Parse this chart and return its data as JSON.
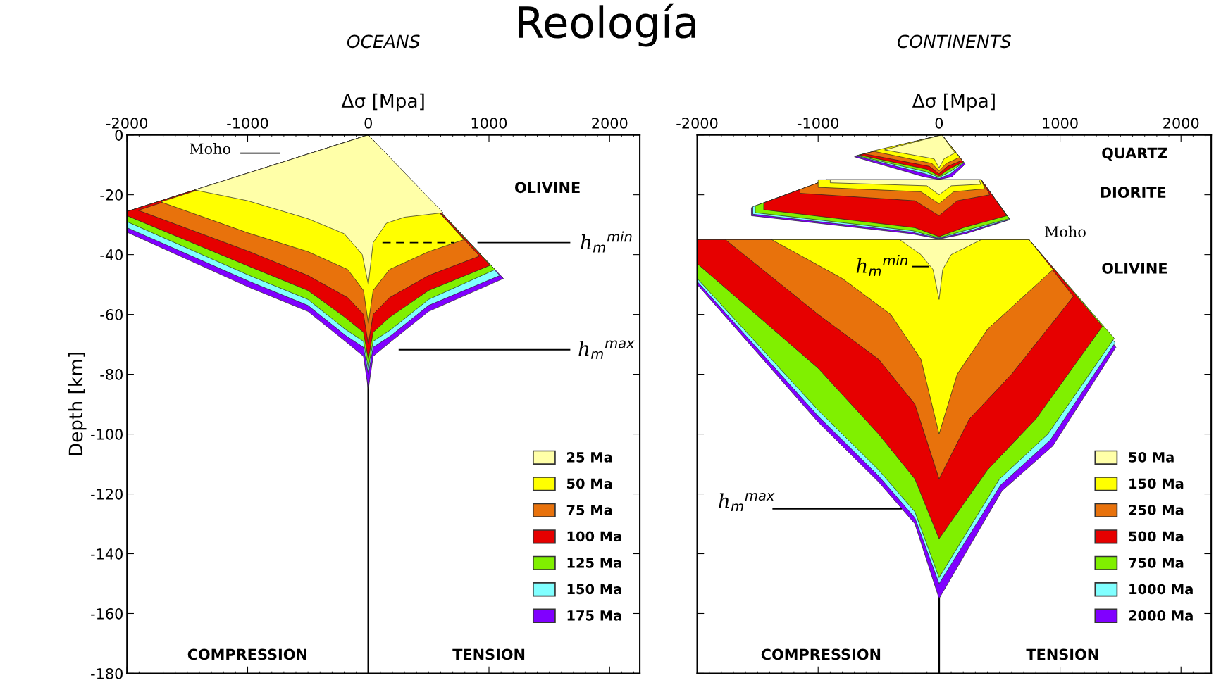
{
  "chart_data": [
    {
      "type": "area",
      "title": "Reología",
      "subtitle": "OCEANS",
      "xlabel": "Δσ [Mpa]",
      "ylabel": "Depth [km]",
      "xlim": [
        -2000,
        2250
      ],
      "xticks": [
        -2000,
        -1000,
        0,
        1000,
        2000
      ],
      "ylim": [
        -180,
        0
      ],
      "yticks": [
        -180,
        -160,
        -140,
        -120,
        -100,
        -80,
        -60,
        -40,
        -20,
        0
      ],
      "legend": "bottom right",
      "grid": false,
      "ref_lines": [
        {
          "axis": "x",
          "value": 0,
          "color": "#000000"
        }
      ],
      "series": [
        {
          "name": "25 Ma",
          "color": "#ffffa8",
          "x": [
            0,
            620,
            300,
            150,
            40,
            0,
            -50,
            -200,
            -500,
            -1000,
            -1440
          ],
          "values": [
            0,
            -26,
            -27.5,
            -29.5,
            -36,
            -50,
            -40,
            -33,
            -28,
            -22,
            -18.4
          ]
        },
        {
          "name": "50 Ma",
          "color": "#ffff00",
          "x": [
            0,
            793,
            500,
            175,
            40,
            0,
            -40,
            -170,
            -500,
            -1000,
            -1720
          ],
          "values": [
            0,
            -35,
            -39,
            -45,
            -52,
            -63,
            -52,
            -45,
            -39,
            -32.7,
            -22.4
          ]
        },
        {
          "name": "75 Ma",
          "color": "#e8720c",
          "x": [
            0,
            921,
            500,
            175,
            40,
            0,
            -40,
            -170,
            -500,
            -985,
            -1907
          ],
          "values": [
            0,
            -40.5,
            -47,
            -54.4,
            -60,
            -70,
            -60,
            -54.4,
            -47,
            -39,
            -25.2
          ]
        },
        {
          "name": "100 Ma",
          "color": "#e60000",
          "x": [
            0,
            1010,
            500,
            175,
            40,
            0,
            -40,
            -192,
            -500,
            -985,
            -2000,
            -2000
          ],
          "values": [
            0,
            -43.6,
            -52,
            -61,
            -66,
            -75,
            -66,
            -61,
            -52,
            -44,
            -27,
            -25.6
          ]
        },
        {
          "name": "125 Ma",
          "color": "#80f000",
          "x": [
            0,
            1050,
            500,
            190,
            40,
            0,
            -40,
            -190,
            -500,
            -985,
            -2000,
            -2000
          ],
          "values": [
            0,
            -45,
            -55,
            -65,
            -69,
            -78,
            -69,
            -65,
            -55,
            -47,
            -29,
            -25.6
          ]
        },
        {
          "name": "150 Ma",
          "color": "#80ffff",
          "x": [
            0,
            1090,
            500,
            190,
            40,
            0,
            -40,
            -190,
            -500,
            -985,
            -2000,
            -2000
          ],
          "values": [
            0,
            -47,
            -57,
            -67,
            -71,
            -80,
            -71,
            -67,
            -57,
            -49,
            -31,
            -25.6
          ]
        },
        {
          "name": "175 Ma",
          "color": "#8000ff",
          "x": [
            0,
            1120,
            500,
            190,
            40,
            0,
            -40,
            -190,
            -500,
            -985,
            -2000,
            -2000
          ],
          "values": [
            0,
            -48,
            -59,
            -69,
            -74,
            -85,
            -74,
            -69,
            -59,
            -51,
            -32.5,
            -25.6
          ]
        },
        {
          "type": "line",
          "color": "#000000",
          "line_style": "dashed",
          "x": [
            117,
            711
          ],
          "values": [
            -36,
            -36
          ]
        },
        {
          "type": "line",
          "color": "#000000",
          "line_style": "solid",
          "x": [
            910,
            1668
          ],
          "values": [
            -36,
            -36
          ]
        },
        {
          "type": "line",
          "color": "#000000",
          "line_style": "solid",
          "x": [
            257,
            1668
          ],
          "values": [
            -71.8,
            -71.8
          ]
        },
        {
          "type": "line",
          "color": "#000000",
          "line_style": "solid",
          "x": [
            -1055,
            -735
          ],
          "values": [
            -6.1,
            -6.1
          ]
        }
      ],
      "annotations": [
        "Moho",
        "OLIVINE",
        "h$_{m}$$^{min}$",
        "h$_{m}$$^{max}$",
        "COMPRESSION",
        "TENSION"
      ]
    },
    {
      "type": "area",
      "subtitle": "CONTINENTS",
      "xlabel": "Δσ [Mpa]",
      "xlim": [
        -2000,
        2250
      ],
      "xticks": [
        -2000,
        -1000,
        0,
        1000,
        2000
      ],
      "ylim": [
        -180,
        0
      ],
      "yticks": [
        -180,
        -160,
        -140,
        -120,
        -100,
        -80,
        -60,
        -40,
        -20,
        0
      ],
      "tick_labels": "x",
      "legend": "bottom right",
      "grid": false,
      "ref_lines": [
        {
          "axis": "x",
          "value": 0,
          "color": "#000000"
        }
      ],
      "series": [
        {
          "name": "50 Ma",
          "color": "#ffffa8",
          "x": [
            -450,
            23,
            130,
            40,
            0,
            -40,
            null,
            -900,
            330,
            345,
            100,
            0,
            -100,
            -900,
            null,
            -325,
            349,
            100,
            30,
            0,
            -50,
            -150
          ],
          "values": [
            -5,
            0,
            -6,
            -8,
            -11,
            -8,
            null,
            -15,
            -15,
            -16.5,
            -17,
            -20,
            -17,
            -16,
            null,
            -35,
            -35,
            -40,
            -45,
            -55,
            -45,
            -40
          ]
        },
        {
          "name": "150 Ma",
          "color": "#ffff00",
          "x": [
            -550,
            23,
            170,
            60,
            0,
            -60,
            null,
            -1000,
            349,
            380,
            120,
            0,
            -150,
            -1000,
            null,
            -1384,
            744,
            942,
            400,
            150,
            0,
            -150,
            -400,
            -800
          ],
          "values": [
            -5.4,
            0,
            -7.5,
            -9.5,
            -12,
            -9.5,
            null,
            -15,
            -15,
            -18,
            -19,
            -23,
            -19,
            -17.5,
            null,
            -35,
            -35,
            -45,
            -65,
            -80,
            -100,
            -75,
            -60,
            -48
          ]
        },
        {
          "name": "250 Ma",
          "color": "#e8720c",
          "x": [
            -620,
            23,
            190,
            70,
            0,
            -80,
            null,
            -1150,
            -930,
            349,
            420,
            150,
            0,
            -200,
            -1150,
            null,
            -1767,
            744,
            1110,
            600,
            250,
            0,
            -200,
            -500,
            -1000
          ],
          "values": [
            -6.3,
            0,
            -8.5,
            -10.5,
            -13,
            -10.5,
            null,
            -18.2,
            -15,
            -15,
            -20,
            -22,
            -27,
            -22,
            -19.5,
            null,
            -35,
            -35,
            -54,
            -80,
            -95,
            -115,
            -90,
            -75,
            -60
          ]
        },
        {
          "name": "500 Ma",
          "color": "#e60000",
          "x": [
            -660,
            23,
            200,
            80,
            0,
            -100,
            null,
            -1450,
            -930,
            349,
            560,
            200,
            0,
            -200,
            -1450,
            null,
            -2000,
            744,
            1350,
            800,
            400,
            0,
            -200,
            -500,
            -1000,
            -2000
          ],
          "values": [
            -6.7,
            0,
            -9,
            -11.5,
            -13.8,
            -11.5,
            null,
            -22.7,
            -15,
            -15,
            -27,
            -31,
            -34,
            -31,
            -25,
            null,
            -35,
            -35,
            -64,
            -95,
            -112,
            -135,
            -115,
            -100,
            -78,
            -43
          ]
        },
        {
          "name": "750 Ma",
          "color": "#80f000",
          "x": [
            -680,
            23,
            205,
            90,
            0,
            -110,
            null,
            -1520,
            -930,
            349,
            580,
            210,
            0,
            -220,
            -1520,
            null,
            -2000,
            744,
            1448,
            900,
            500,
            0,
            -200,
            -500,
            -1000,
            -2000
          ],
          "values": [
            -6.9,
            0,
            -9.2,
            -12.3,
            -14.2,
            -12.3,
            null,
            -23.7,
            -15,
            -15,
            -28,
            -32,
            -34.4,
            -32,
            -26,
            null,
            -35,
            -35,
            -68,
            -100,
            -115,
            -148,
            -126,
            -112,
            -92,
            -48
          ]
        },
        {
          "name": "1000 Ma",
          "color": "#80ffff",
          "x": [
            -688,
            23,
            207,
            95,
            0,
            -115,
            null,
            -1540,
            -930,
            349,
            585,
            215,
            0,
            -225,
            -1540,
            null,
            -2000,
            744,
            1455,
            920,
            510,
            0,
            -200,
            -500,
            -1000,
            -2000
          ],
          "values": [
            -7,
            0,
            -9.3,
            -13,
            -14.6,
            -13,
            null,
            -24,
            -15,
            -15,
            -28.2,
            -32.5,
            -34.6,
            -32.5,
            -26.5,
            null,
            -35,
            -35,
            -69.5,
            -102,
            -117,
            -150,
            -128,
            -114,
            -94,
            -49
          ]
        },
        {
          "name": "2000 Ma",
          "color": "#8000ff",
          "x": [
            -700,
            23,
            215,
            105,
            0,
            -125,
            null,
            -1552,
            -930,
            349,
            587,
            220,
            0,
            -230,
            -1552,
            null,
            -2000,
            744,
            1462,
            940,
            520,
            0,
            -200,
            -500,
            -1000,
            -2000
          ],
          "values": [
            -7.3,
            0,
            -9.8,
            -14,
            -14.9,
            -14,
            null,
            -24.3,
            -15,
            -15,
            -28.3,
            -33,
            -34.8,
            -33,
            -27,
            null,
            -35,
            -35,
            -71,
            -104,
            -119,
            -155,
            -130,
            -116,
            -96,
            -50
          ]
        },
        {
          "type": "line",
          "color": "#000000",
          "line_style": "solid",
          "x": [
            -215,
            -87
          ],
          "values": [
            -44,
            -44
          ]
        },
        {
          "type": "line",
          "color": "#000000",
          "line_style": "solid",
          "x": [
            -1372,
            -314
          ],
          "values": [
            -125,
            -125
          ]
        }
      ],
      "annotations": [
        "QUARTZ",
        "DIORITE",
        "Moho",
        "OLIVINE",
        "h$_{m}$$^{min}$",
        "h$_{m}$$^{max}$",
        "COMPRESSION",
        "TENSION"
      ]
    }
  ]
}
